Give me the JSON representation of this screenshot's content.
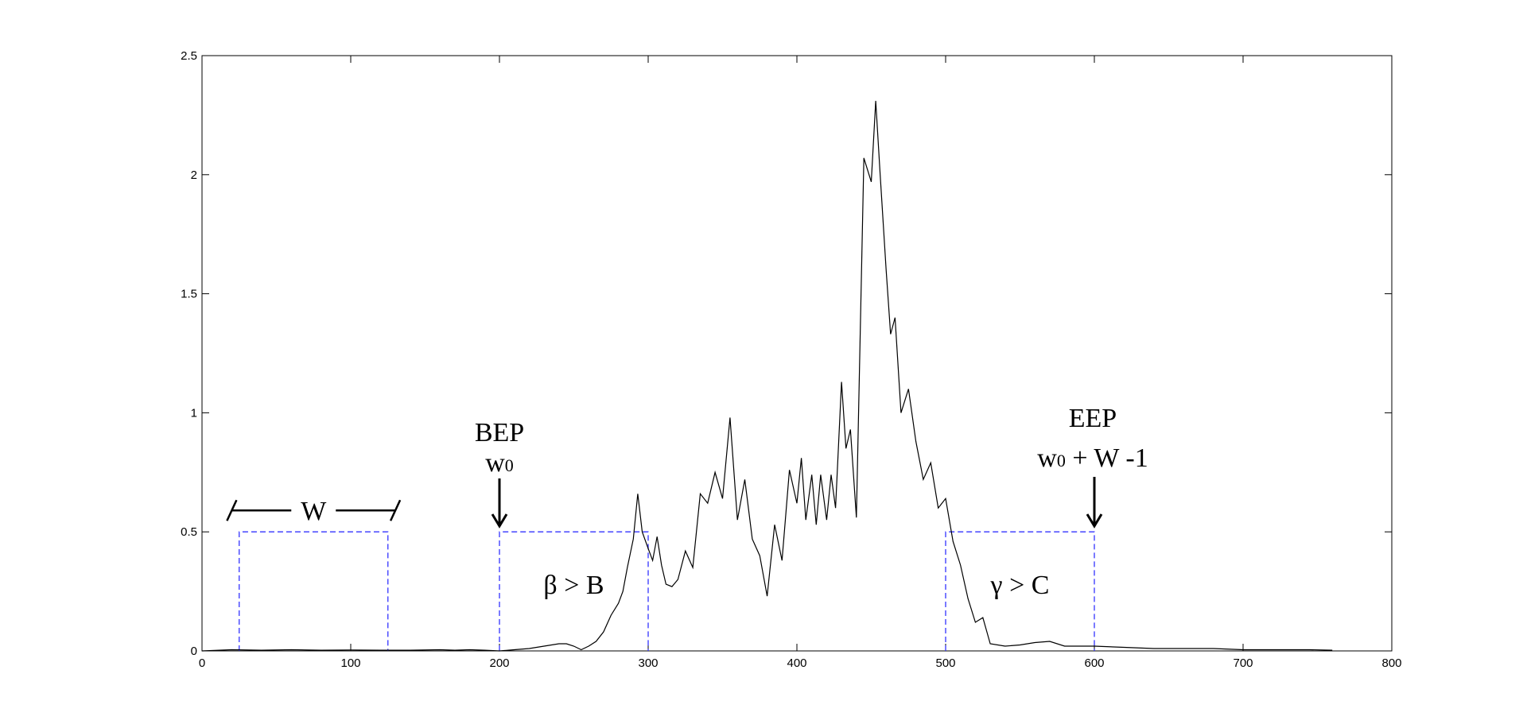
{
  "chart_data": {
    "type": "line",
    "title": "",
    "xlabel": "",
    "ylabel": "",
    "xlim": [
      0,
      800
    ],
    "ylim": [
      0,
      2.5
    ],
    "x_ticks": [
      "0",
      "100",
      "200",
      "300",
      "400",
      "500",
      "600",
      "700",
      "800"
    ],
    "y_ticks": [
      "0",
      "0.5",
      "1",
      "1.5",
      "2",
      "2.5"
    ],
    "grid": false,
    "legend": "none",
    "series": [
      {
        "color": "#000000",
        "x": [
          0,
          20,
          40,
          60,
          80,
          100,
          120,
          140,
          160,
          170,
          180,
          190,
          200,
          210,
          220,
          230,
          240,
          245,
          250,
          255,
          260,
          265,
          270,
          275,
          280,
          283,
          286,
          290,
          293,
          296,
          300,
          303,
          306,
          309,
          312,
          316,
          320,
          325,
          330,
          335,
          340,
          345,
          350,
          355,
          360,
          365,
          370,
          375,
          380,
          385,
          390,
          395,
          400,
          403,
          406,
          410,
          413,
          416,
          420,
          423,
          426,
          430,
          433,
          436,
          440,
          445,
          450,
          453,
          456,
          460,
          463,
          466,
          470,
          475,
          480,
          485,
          490,
          495,
          500,
          505,
          510,
          515,
          520,
          525,
          530,
          540,
          550,
          560,
          570,
          580,
          600,
          620,
          640,
          660,
          680,
          700,
          720,
          745,
          760
        ],
        "y": [
          0,
          0.005,
          0.003,
          0.005,
          0.003,
          0.004,
          0.003,
          0.003,
          0.005,
          0.003,
          0.005,
          0.003,
          0,
          0.005,
          0.01,
          0.02,
          0.03,
          0.03,
          0.02,
          0.005,
          0.02,
          0.04,
          0.08,
          0.15,
          0.2,
          0.25,
          0.35,
          0.47,
          0.66,
          0.5,
          0.43,
          0.38,
          0.48,
          0.36,
          0.28,
          0.27,
          0.3,
          0.42,
          0.35,
          0.66,
          0.62,
          0.75,
          0.64,
          0.98,
          0.55,
          0.72,
          0.47,
          0.4,
          0.23,
          0.53,
          0.38,
          0.76,
          0.62,
          0.81,
          0.55,
          0.74,
          0.53,
          0.74,
          0.55,
          0.74,
          0.6,
          1.13,
          0.85,
          0.93,
          0.56,
          2.07,
          1.97,
          2.31,
          2.0,
          1.6,
          1.33,
          1.4,
          1.0,
          1.1,
          0.88,
          0.72,
          0.79,
          0.6,
          0.64,
          0.46,
          0.36,
          0.22,
          0.12,
          0.14,
          0.03,
          0.02,
          0.025,
          0.035,
          0.04,
          0.02,
          0.02,
          0.015,
          0.01,
          0.01,
          0.01,
          0.005,
          0.005,
          0.005,
          0.003
        ]
      }
    ],
    "windows": [
      {
        "x0": 25,
        "x1": 125,
        "height": 0.5,
        "color": "#3333ff"
      },
      {
        "x0": 200,
        "x1": 300,
        "height": 0.5,
        "color": "#3333ff"
      },
      {
        "x0": 500,
        "x1": 600,
        "height": 0.5,
        "color": "#3333ff"
      }
    ],
    "annotations": {
      "w_label": "W",
      "bep_label": "BEP",
      "bep_w": "w",
      "bep_sub": "0",
      "eep_label": "EEP",
      "eep_w": "w",
      "eep_sub": "0",
      "eep_rest": " + W -1",
      "beta_label": "β > B",
      "gamma_label": "γ > C"
    }
  }
}
